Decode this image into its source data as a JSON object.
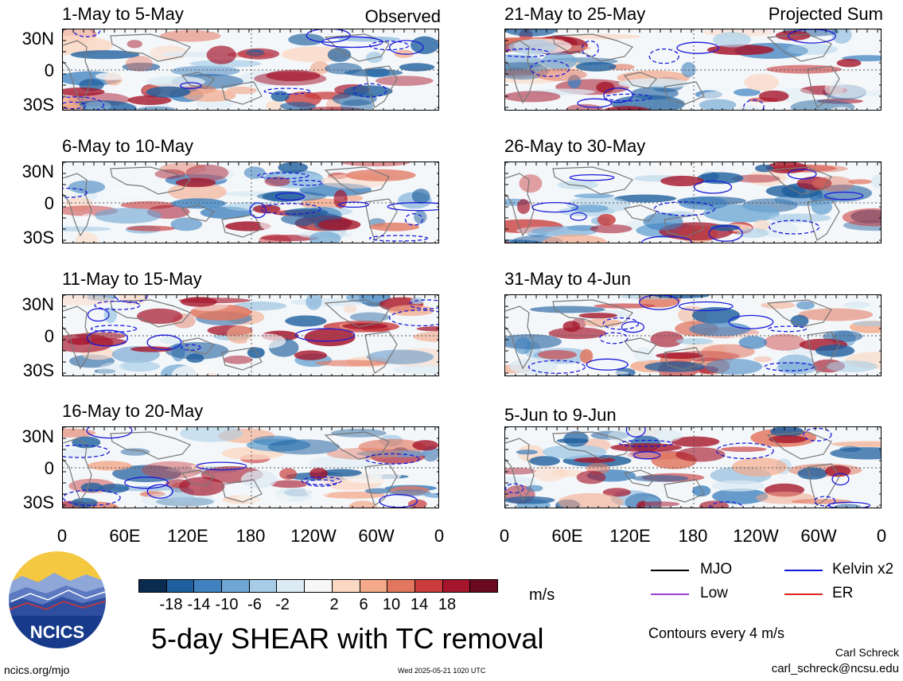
{
  "header": {
    "observed_label": "Observed",
    "projected_label": "Projected Sum"
  },
  "panels": [
    {
      "title": "1-May to 5-May",
      "column": "observed"
    },
    {
      "title": "6-May to 10-May",
      "column": "observed"
    },
    {
      "title": "11-May to 15-May",
      "column": "observed"
    },
    {
      "title": "16-May to 20-May",
      "column": "observed"
    },
    {
      "title": "21-May to 25-May",
      "column": "projected"
    },
    {
      "title": "26-May to 30-May",
      "column": "projected"
    },
    {
      "title": "31-May to 4-Jun",
      "column": "projected"
    },
    {
      "title": "5-Jun to 9-Jun",
      "column": "projected"
    }
  ],
  "axes": {
    "lat_labels": [
      "30N",
      "0",
      "30S"
    ],
    "lon_labels": [
      "0",
      "60E",
      "120E",
      "180",
      "120W",
      "60W",
      "0"
    ]
  },
  "colorbar": {
    "labels": [
      "-18",
      "-14",
      "-10",
      "-6",
      "-2",
      "2",
      "6",
      "10",
      "14",
      "18"
    ],
    "colors": [
      "#0b2a4f",
      "#1f5f9e",
      "#3f82bf",
      "#6fa7d4",
      "#a7cde6",
      "#dbeaf3",
      "#f7f7f7",
      "#fbd8c4",
      "#f3a98a",
      "#e2765f",
      "#c93b3c",
      "#a5152b",
      "#6b0a1f"
    ],
    "unit": "m/s"
  },
  "legend": {
    "items": [
      {
        "label": "MJO",
        "color": "#000000"
      },
      {
        "label": "Kelvin x2",
        "color": "#1414e0"
      },
      {
        "label": "Low",
        "color": "#9a3fd0"
      },
      {
        "label": "ER",
        "color": "#e02020"
      }
    ],
    "contours_note": "Contours every 4 m/s"
  },
  "main_title": "5-day SHEAR with TC removal",
  "logo_text": "NCICS",
  "author": "Carl Schreck",
  "email": "carl_schreck@ncsu.edu",
  "site": "ncics.org/mjo",
  "timestamp": "Wed 2025-05-21 1020 UTC"
}
